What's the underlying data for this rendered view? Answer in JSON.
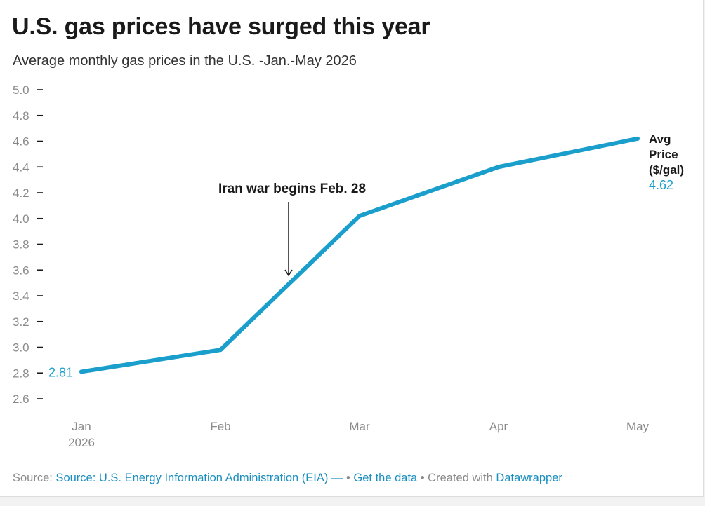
{
  "header": {
    "title": "U.S. gas prices have surged this year",
    "subtitle": "Average monthly gas prices in the U.S. -Jan.-May 2026"
  },
  "chart_data": {
    "type": "line",
    "categories": [
      "Jan",
      "Feb",
      "Mar",
      "Apr",
      "May"
    ],
    "category_sublabels": [
      "2026",
      "",
      "",
      "",
      ""
    ],
    "series": [
      {
        "name": "Avg Price ($/gal)",
        "values": [
          2.81,
          2.98,
          4.02,
          4.4,
          4.62
        ],
        "color": "#1a9fcc"
      }
    ],
    "ylim": [
      2.6,
      5.0
    ],
    "yticks": [
      "2.6",
      "2.8",
      "3.0",
      "3.2",
      "3.4",
      "3.6",
      "3.8",
      "4.0",
      "4.2",
      "4.4",
      "4.6",
      "4.8",
      "5.0"
    ],
    "end_label": {
      "lines": [
        "Avg",
        "Price",
        "($/gal)"
      ],
      "value": "4.62"
    },
    "start_label": "2.81",
    "annotation": {
      "text": "Iran war begins Feb. 28",
      "x_month": 1.45
    },
    "grid": false
  },
  "footer": {
    "source_prefix": "Source: ",
    "source_link": "Source: U.S. Energy Information Administration (EIA) —",
    "sep1": " • ",
    "get_data": "Get the data",
    "sep2": " • Created with ",
    "datawrapper": "Datawrapper"
  }
}
